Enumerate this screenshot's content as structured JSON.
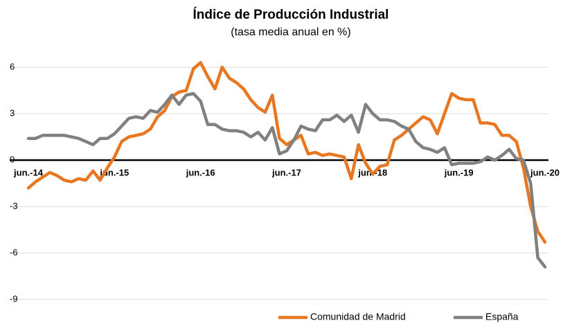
{
  "chart_data": {
    "type": "line",
    "title": "Índice de Producción Industrial",
    "subtitle": "(tasa media anual en %)",
    "categories": [
      "jun.-14",
      null,
      null,
      null,
      null,
      null,
      null,
      null,
      null,
      null,
      null,
      null,
      "jun.-15",
      null,
      null,
      null,
      null,
      null,
      null,
      null,
      null,
      null,
      null,
      null,
      "jun.-16",
      null,
      null,
      null,
      null,
      null,
      null,
      null,
      null,
      null,
      null,
      null,
      "jun.-17",
      null,
      null,
      null,
      null,
      null,
      null,
      null,
      null,
      null,
      null,
      null,
      "jun.-18",
      null,
      null,
      null,
      null,
      null,
      null,
      null,
      null,
      null,
      null,
      null,
      "jun.-19",
      null,
      null,
      null,
      null,
      null,
      null,
      null,
      null,
      null,
      null,
      null,
      "jun.-20"
    ],
    "series": [
      {
        "name": "Comunidad de Madrid",
        "color": "#e87722",
        "values": [
          -1.8,
          -1.4,
          -1.1,
          -0.8,
          -1.0,
          -1.3,
          -1.4,
          -1.2,
          -1.3,
          -0.7,
          -1.3,
          -0.5,
          0.2,
          1.2,
          1.5,
          1.6,
          1.7,
          2.0,
          2.8,
          3.2,
          4.1,
          4.4,
          4.5,
          5.9,
          6.3,
          5.4,
          4.6,
          6.0,
          5.3,
          5.0,
          4.6,
          3.9,
          3.4,
          3.1,
          4.2,
          1.4,
          1.0,
          1.3,
          1.6,
          0.4,
          0.5,
          0.3,
          0.4,
          0.3,
          0.2,
          -1.2,
          1.0,
          -0.2,
          -0.9,
          -0.4,
          -0.3,
          1.3,
          1.6,
          2.0,
          2.4,
          2.8,
          2.6,
          1.7,
          3.0,
          4.3,
          4.0,
          3.9,
          3.9,
          2.4,
          2.4,
          2.3,
          1.6,
          1.6,
          1.2,
          -0.5,
          -3.0,
          -4.6,
          -5.3
        ]
      },
      {
        "name": "España",
        "color": "#808080",
        "values": [
          1.4,
          1.4,
          1.6,
          1.6,
          1.6,
          1.6,
          1.5,
          1.4,
          1.2,
          1.0,
          1.4,
          1.4,
          1.7,
          2.2,
          2.7,
          2.8,
          2.7,
          3.2,
          3.1,
          3.6,
          4.2,
          3.6,
          4.2,
          4.3,
          3.8,
          2.3,
          2.3,
          2.0,
          1.9,
          1.9,
          1.8,
          1.5,
          1.8,
          1.3,
          2.1,
          0.4,
          0.6,
          1.3,
          2.2,
          2.0,
          1.9,
          2.6,
          2.6,
          2.9,
          2.5,
          2.9,
          1.8,
          3.6,
          3.0,
          2.6,
          2.6,
          2.5,
          2.2,
          2.0,
          1.2,
          0.8,
          0.7,
          0.5,
          0.8,
          -0.3,
          -0.2,
          -0.2,
          -0.2,
          -0.1,
          0.2,
          0.0,
          0.3,
          0.7,
          0.1,
          0.0,
          -1.5,
          -6.3,
          -6.9
        ]
      }
    ],
    "ylim": [
      -9,
      6
    ],
    "yticks": [
      6,
      3,
      0,
      -3,
      -6,
      -9
    ],
    "grid": true,
    "legend": "bottom"
  }
}
